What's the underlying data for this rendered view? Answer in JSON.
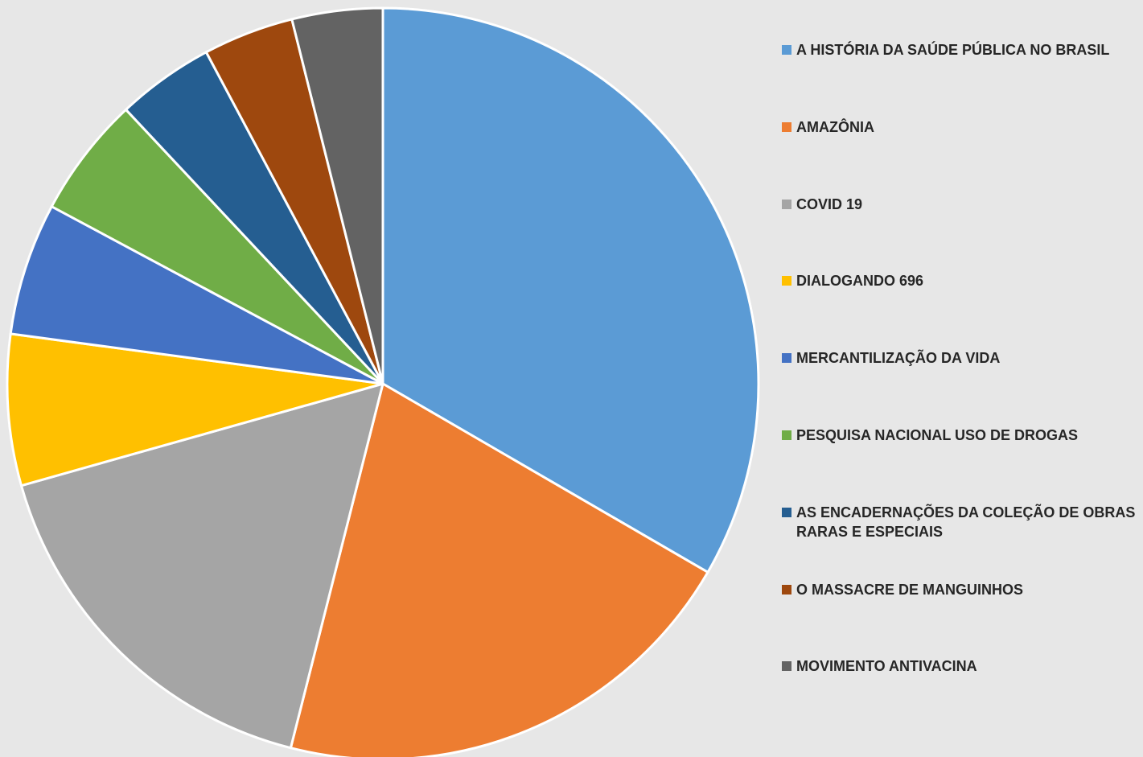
{
  "chart_data": {
    "type": "pie",
    "categories": [
      "A HISTÓRIA DA SAÚDE PÚBLICA NO BRASIL",
      "AMAZÔNIA",
      "COVID 19",
      "DIALOGANDO 696",
      "MERCANTILIZAÇÃO DA VIDA",
      "PESQUISA NACIONAL USO DE DROGAS",
      "AS ENCADERNAÇÕES DA COLEÇÃO DE OBRAS RARAS E ESPECIAIS",
      "O MASSACRE DE MANGUINHOS",
      "MOVIMENTO ANTIVACINA"
    ],
    "values": [
      33.4,
      20.6,
      16.7,
      6.5,
      5.7,
      5.2,
      4.2,
      3.9,
      3.9
    ],
    "colors": [
      "#5b9bd5",
      "#ed7d31",
      "#a5a5a5",
      "#ffc000",
      "#4472c4",
      "#70ad47",
      "#255e91",
      "#9e480e",
      "#636363"
    ],
    "legend": "right"
  }
}
